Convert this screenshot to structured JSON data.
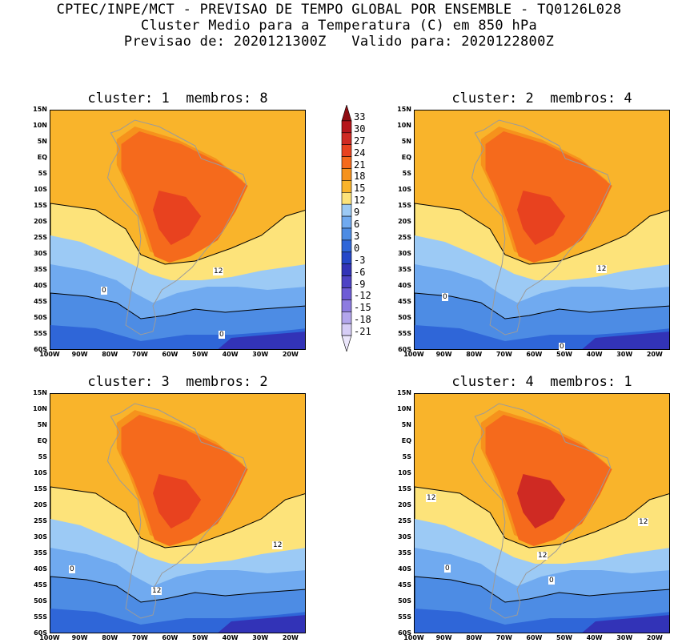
{
  "header": {
    "line1": "CPTEC/INPE/MCT - PREVISAO DE TEMPO GLOBAL POR ENSEMBLE - TQ0126L028",
    "line2": "Cluster Medio para a Temperatura (C) em 850 hPa",
    "line3": "Previsao de: 2020121300Z   Valido para: 2020122800Z"
  },
  "panels": [
    {
      "title": "cluster: 1  membros: 8",
      "contour_labels": [
        "12",
        "0",
        "0"
      ]
    },
    {
      "title": "cluster: 2  membros: 4",
      "contour_labels": [
        "12",
        "0",
        "0"
      ]
    },
    {
      "title": "cluster: 3  membros: 2",
      "contour_labels": [
        "12",
        "12",
        "0"
      ]
    },
    {
      "title": "cluster: 4  membros: 1",
      "contour_labels": [
        "12",
        "12",
        "12",
        "0",
        "0"
      ]
    }
  ],
  "lat_labels": [
    "15N",
    "10N",
    "5N",
    "EQ",
    "5S",
    "10S",
    "15S",
    "20S",
    "25S",
    "30S",
    "35S",
    "40S",
    "45S",
    "50S",
    "55S",
    "60S"
  ],
  "lon_labels": [
    "100W",
    "90W",
    "80W",
    "70W",
    "60W",
    "50W",
    "40W",
    "30W",
    "20W"
  ],
  "colorbar": {
    "labels": [
      "33",
      "30",
      "27",
      "24",
      "21",
      "18",
      "15",
      "12",
      "9",
      "6",
      "3",
      "0",
      "-3",
      "-6",
      "-9",
      "-12",
      "-15",
      "-18",
      "-21"
    ],
    "colors": [
      "#8e0c12",
      "#b5161b",
      "#cf2a23",
      "#e8421f",
      "#f56a1c",
      "#f6921c",
      "#f9b42b",
      "#fde37a",
      "#9ccaf5",
      "#70aaf0",
      "#4d8ce4",
      "#2f66d8",
      "#2447c8",
      "#3233b7",
      "#4e43c5",
      "#6e5cd6",
      "#8d7ce0",
      "#b3a6ec",
      "#d6cdf6",
      "#ebe6fb"
    ]
  }
}
